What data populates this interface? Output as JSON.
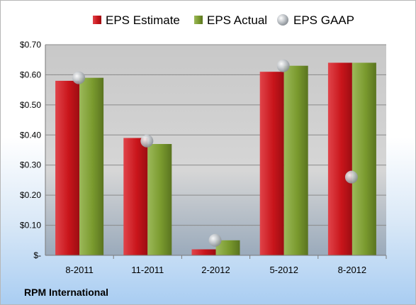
{
  "chart_data": {
    "type": "bar",
    "categories": [
      "8-2011",
      "11-2011",
      "2-2012",
      "5-2012",
      "8-2012"
    ],
    "series": [
      {
        "name": "EPS Estimate",
        "kind": "bar",
        "values": [
          0.58,
          0.39,
          0.02,
          0.61,
          0.64
        ]
      },
      {
        "name": "EPS Actual",
        "kind": "bar",
        "values": [
          0.59,
          0.37,
          0.05,
          0.63,
          0.64
        ]
      },
      {
        "name": "EPS GAAP",
        "kind": "marker",
        "values": [
          0.59,
          0.38,
          0.05,
          0.63,
          0.26
        ]
      }
    ],
    "ylim": [
      0,
      0.7
    ],
    "yticks": [
      0,
      0.1,
      0.2,
      0.3,
      0.4,
      0.5,
      0.6,
      0.7
    ],
    "ytick_labels": [
      "$-",
      "$0.10",
      "$0.20",
      "$0.30",
      "$0.40",
      "$0.50",
      "$0.60",
      "$0.70"
    ],
    "grid": true,
    "legend_position": "top",
    "colors": {
      "estimate": "#c9151b",
      "actual": "#7a9a2e",
      "gaap": "#a8adb2"
    }
  },
  "footer": {
    "company": "RPM International"
  }
}
